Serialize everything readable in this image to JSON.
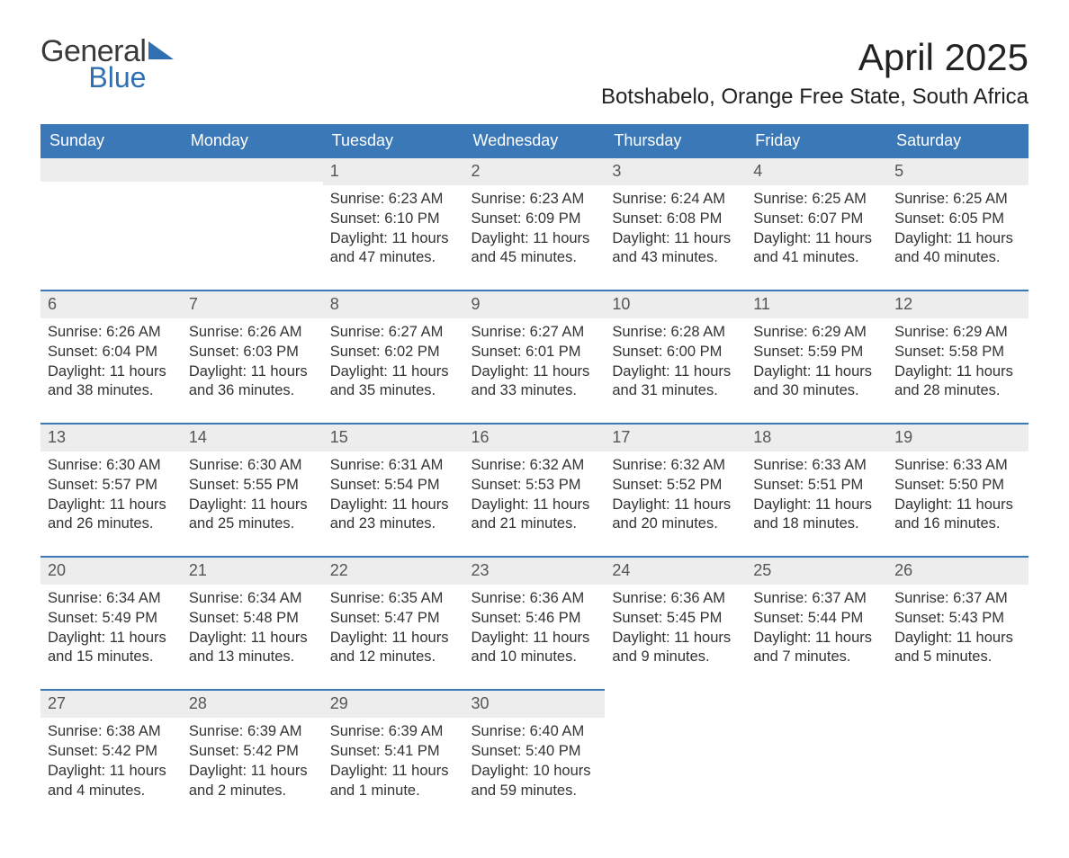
{
  "brand": {
    "line1": "General",
    "line2": "Blue",
    "color_primary": "#2f6fb2"
  },
  "title": "April 2025",
  "location": "Botshabelo, Orange Free State, South Africa",
  "colors": {
    "header_bg": "#3a78b8",
    "header_text": "#ffffff",
    "band_bg": "#ededed",
    "rule": "#3a78b8",
    "page_bg": "#ffffff",
    "text": "#333333"
  },
  "weekdays": [
    "Sunday",
    "Monday",
    "Tuesday",
    "Wednesday",
    "Thursday",
    "Friday",
    "Saturday"
  ],
  "weeks": [
    [
      {
        "empty": true
      },
      {
        "empty": true
      },
      {
        "n": "1",
        "sunrise": "6:23 AM",
        "sunset": "6:10 PM",
        "daylight": "11 hours and 47 minutes."
      },
      {
        "n": "2",
        "sunrise": "6:23 AM",
        "sunset": "6:09 PM",
        "daylight": "11 hours and 45 minutes."
      },
      {
        "n": "3",
        "sunrise": "6:24 AM",
        "sunset": "6:08 PM",
        "daylight": "11 hours and 43 minutes."
      },
      {
        "n": "4",
        "sunrise": "6:25 AM",
        "sunset": "6:07 PM",
        "daylight": "11 hours and 41 minutes."
      },
      {
        "n": "5",
        "sunrise": "6:25 AM",
        "sunset": "6:05 PM",
        "daylight": "11 hours and 40 minutes."
      }
    ],
    [
      {
        "n": "6",
        "sunrise": "6:26 AM",
        "sunset": "6:04 PM",
        "daylight": "11 hours and 38 minutes."
      },
      {
        "n": "7",
        "sunrise": "6:26 AM",
        "sunset": "6:03 PM",
        "daylight": "11 hours and 36 minutes."
      },
      {
        "n": "8",
        "sunrise": "6:27 AM",
        "sunset": "6:02 PM",
        "daylight": "11 hours and 35 minutes."
      },
      {
        "n": "9",
        "sunrise": "6:27 AM",
        "sunset": "6:01 PM",
        "daylight": "11 hours and 33 minutes."
      },
      {
        "n": "10",
        "sunrise": "6:28 AM",
        "sunset": "6:00 PM",
        "daylight": "11 hours and 31 minutes."
      },
      {
        "n": "11",
        "sunrise": "6:29 AM",
        "sunset": "5:59 PM",
        "daylight": "11 hours and 30 minutes."
      },
      {
        "n": "12",
        "sunrise": "6:29 AM",
        "sunset": "5:58 PM",
        "daylight": "11 hours and 28 minutes."
      }
    ],
    [
      {
        "n": "13",
        "sunrise": "6:30 AM",
        "sunset": "5:57 PM",
        "daylight": "11 hours and 26 minutes."
      },
      {
        "n": "14",
        "sunrise": "6:30 AM",
        "sunset": "5:55 PM",
        "daylight": "11 hours and 25 minutes."
      },
      {
        "n": "15",
        "sunrise": "6:31 AM",
        "sunset": "5:54 PM",
        "daylight": "11 hours and 23 minutes."
      },
      {
        "n": "16",
        "sunrise": "6:32 AM",
        "sunset": "5:53 PM",
        "daylight": "11 hours and 21 minutes."
      },
      {
        "n": "17",
        "sunrise": "6:32 AM",
        "sunset": "5:52 PM",
        "daylight": "11 hours and 20 minutes."
      },
      {
        "n": "18",
        "sunrise": "6:33 AM",
        "sunset": "5:51 PM",
        "daylight": "11 hours and 18 minutes."
      },
      {
        "n": "19",
        "sunrise": "6:33 AM",
        "sunset": "5:50 PM",
        "daylight": "11 hours and 16 minutes."
      }
    ],
    [
      {
        "n": "20",
        "sunrise": "6:34 AM",
        "sunset": "5:49 PM",
        "daylight": "11 hours and 15 minutes."
      },
      {
        "n": "21",
        "sunrise": "6:34 AM",
        "sunset": "5:48 PM",
        "daylight": "11 hours and 13 minutes."
      },
      {
        "n": "22",
        "sunrise": "6:35 AM",
        "sunset": "5:47 PM",
        "daylight": "11 hours and 12 minutes."
      },
      {
        "n": "23",
        "sunrise": "6:36 AM",
        "sunset": "5:46 PM",
        "daylight": "11 hours and 10 minutes."
      },
      {
        "n": "24",
        "sunrise": "6:36 AM",
        "sunset": "5:45 PM",
        "daylight": "11 hours and 9 minutes."
      },
      {
        "n": "25",
        "sunrise": "6:37 AM",
        "sunset": "5:44 PM",
        "daylight": "11 hours and 7 minutes."
      },
      {
        "n": "26",
        "sunrise": "6:37 AM",
        "sunset": "5:43 PM",
        "daylight": "11 hours and 5 minutes."
      }
    ],
    [
      {
        "n": "27",
        "sunrise": "6:38 AM",
        "sunset": "5:42 PM",
        "daylight": "11 hours and 4 minutes."
      },
      {
        "n": "28",
        "sunrise": "6:39 AM",
        "sunset": "5:42 PM",
        "daylight": "11 hours and 2 minutes."
      },
      {
        "n": "29",
        "sunrise": "6:39 AM",
        "sunset": "5:41 PM",
        "daylight": "11 hours and 1 minute."
      },
      {
        "n": "30",
        "sunrise": "6:40 AM",
        "sunset": "5:40 PM",
        "daylight": "10 hours and 59 minutes."
      },
      {
        "empty": true
      },
      {
        "empty": true
      },
      {
        "empty": true
      }
    ]
  ],
  "labels": {
    "sunrise": "Sunrise:",
    "sunset": "Sunset:",
    "daylight": "Daylight:"
  }
}
